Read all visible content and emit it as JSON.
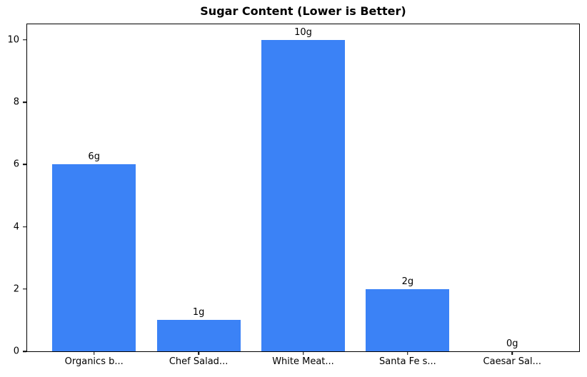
{
  "chart_data": {
    "type": "bar",
    "title": "Sugar Content (Lower is Better)",
    "categories": [
      "Organics b...",
      "Chef Salad...",
      "White Meat...",
      "Santa Fe s...",
      "Caesar Sal..."
    ],
    "values": [
      6,
      1,
      10,
      2,
      0
    ],
    "data_labels": [
      "6g",
      "1g",
      "10g",
      "2g",
      "0g"
    ],
    "xlabel": "",
    "ylabel": "",
    "y_ticks": [
      0,
      2,
      4,
      6,
      8,
      10
    ],
    "ylim": [
      0,
      10.5
    ],
    "grid": false,
    "legend_position": "none",
    "bar_color": "#3b82f6",
    "axis_color": "#000000",
    "background_color": "#ffffff"
  }
}
